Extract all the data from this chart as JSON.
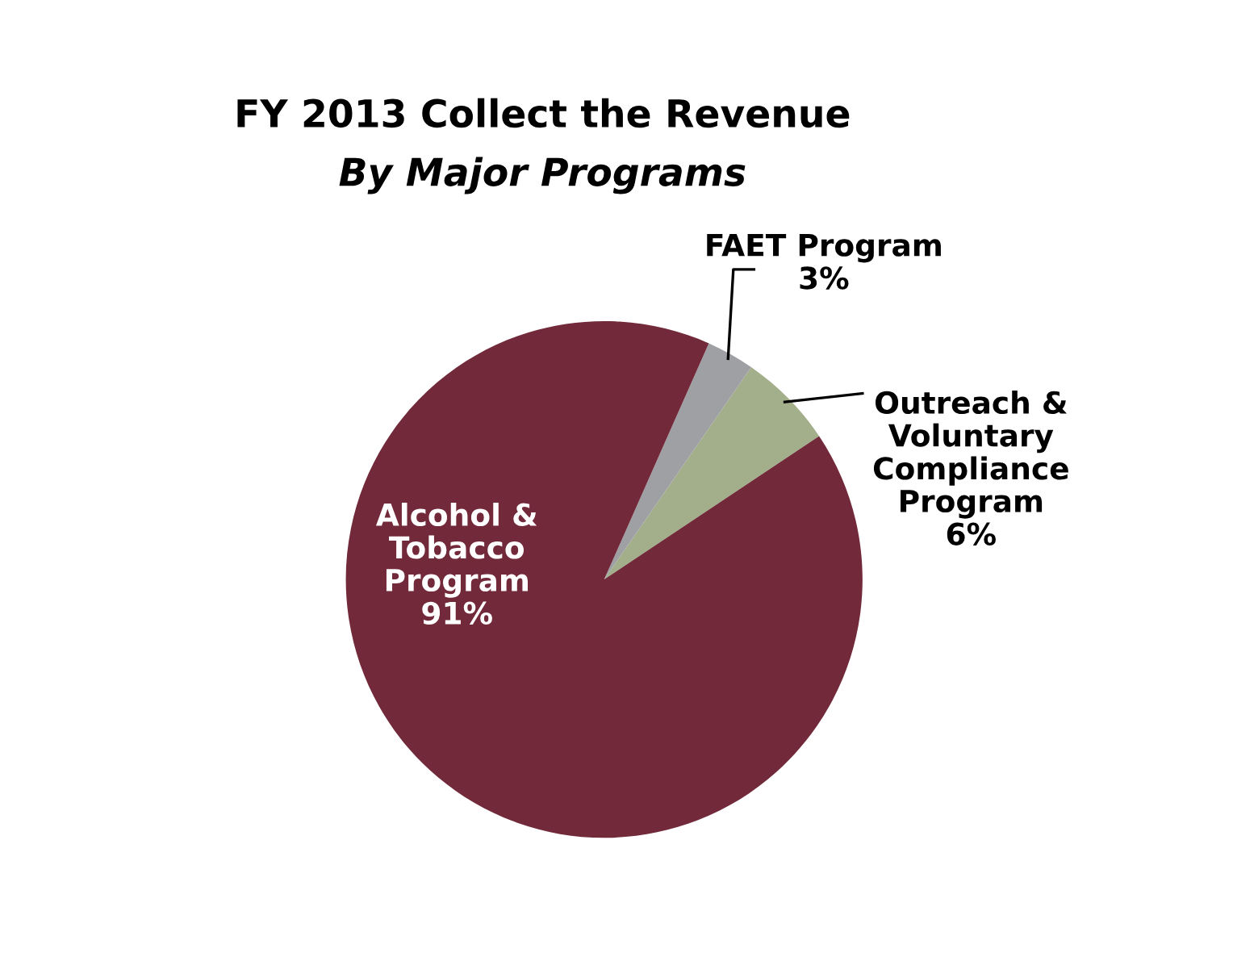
{
  "chart_data": {
    "type": "pie",
    "title": "FY 2013 Collect the Revenue",
    "subtitle": "By Major Programs",
    "categories": [
      "Outreach & Voluntary Compliance Program",
      "FAET Program",
      "Alcohol & Tobacco Program"
    ],
    "values": [
      6,
      3,
      91
    ],
    "value_labels": [
      "6%",
      "3%",
      "91%"
    ],
    "colors": [
      "#a3ae8b",
      "#9fa0a4",
      "#722a3b"
    ],
    "legend": false
  }
}
